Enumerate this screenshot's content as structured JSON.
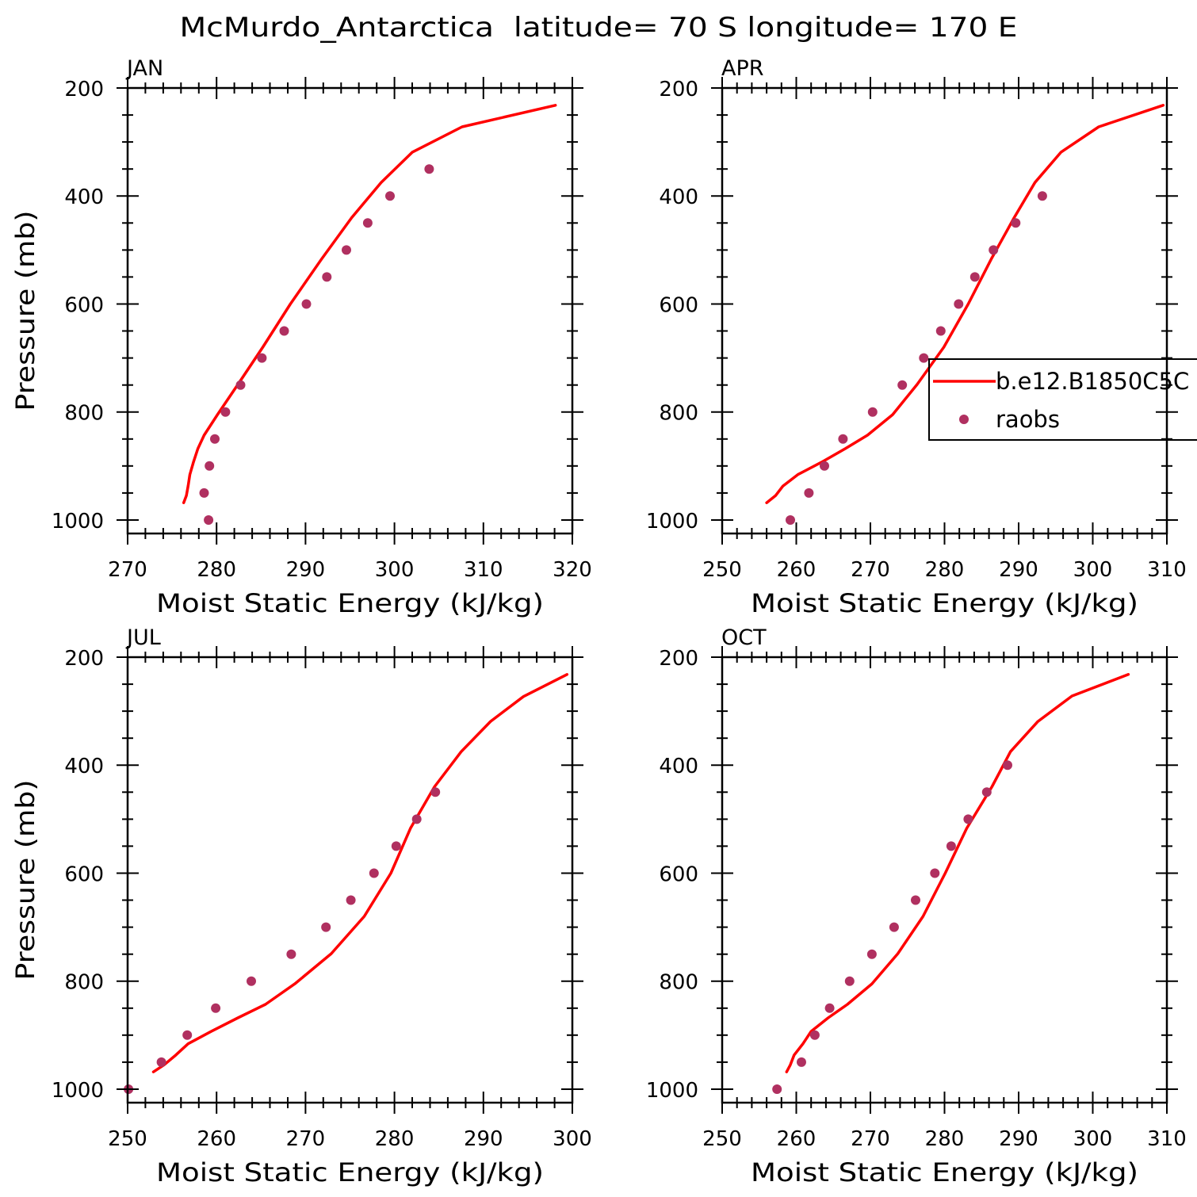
{
  "title": "McMurdo_Antarctica  latitude= 70 S longitude= 170 E",
  "colors": {
    "axes": "#000000",
    "background": "#ffffff"
  },
  "chart_data": [
    {
      "type": "line",
      "panel_label": "JAN",
      "xlabel": "Moist Static Energy (kJ/kg)",
      "ylabel": "Pressure (mb)",
      "xlim": [
        270,
        320
      ],
      "ylim": [
        200,
        1025
      ],
      "y_axis_reversed": true,
      "xticks": [
        270,
        280,
        290,
        300,
        310,
        320
      ],
      "yticks": [
        200,
        400,
        600,
        800,
        1000
      ],
      "x_minor_step": 2,
      "y_minor_step": 50,
      "grid": false,
      "series": [
        {
          "name": "b.e12.B1850C5C",
          "style": "line",
          "color": "#ff0000",
          "points": [
            [
              318.1,
              232
            ],
            [
              307.6,
              272
            ],
            [
              302.0,
              319
            ],
            [
              298.5,
              375
            ],
            [
              295.2,
              440
            ],
            [
              291.8,
              517
            ],
            [
              288.3,
              600
            ],
            [
              285.2,
              680
            ],
            [
              282.4,
              749
            ],
            [
              280.1,
              805
            ],
            [
              278.6,
              843
            ],
            [
              277.9,
              868
            ],
            [
              277.4,
              893
            ],
            [
              277.0,
              916
            ],
            [
              276.8,
              937
            ],
            [
              276.6,
              955
            ],
            [
              276.3,
              968
            ]
          ]
        },
        {
          "name": "raobs",
          "style": "markers",
          "color": "#b03060",
          "points": [
            [
              303.9,
              350
            ],
            [
              299.5,
              400
            ],
            [
              297.0,
              450
            ],
            [
              294.6,
              500
            ],
            [
              292.4,
              550
            ],
            [
              290.1,
              600
            ],
            [
              287.6,
              650
            ],
            [
              285.1,
              700
            ],
            [
              282.7,
              750
            ],
            [
              281.0,
              800
            ],
            [
              279.8,
              850
            ],
            [
              279.2,
              900
            ],
            [
              278.6,
              950
            ],
            [
              279.1,
              1000
            ]
          ]
        }
      ]
    },
    {
      "type": "line",
      "panel_label": "APR",
      "xlabel": "Moist Static Energy (kJ/kg)",
      "ylabel": "",
      "xlim": [
        250,
        310
      ],
      "ylim": [
        200,
        1025
      ],
      "y_axis_reversed": true,
      "xticks": [
        250,
        260,
        270,
        280,
        290,
        300,
        310
      ],
      "yticks": [
        200,
        400,
        600,
        800,
        1000
      ],
      "x_minor_step": 2,
      "y_minor_step": 50,
      "grid": false,
      "legend_placement": "center-right",
      "series": [
        {
          "name": "b.e12.B1850C5C",
          "style": "line",
          "color": "#ff0000",
          "points": [
            [
              309.5,
              232
            ],
            [
              300.8,
              272
            ],
            [
              295.7,
              319
            ],
            [
              292.2,
              375
            ],
            [
              289.4,
              440
            ],
            [
              286.3,
              517
            ],
            [
              283.2,
              600
            ],
            [
              279.9,
              680
            ],
            [
              276.3,
              749
            ],
            [
              273.0,
              805
            ],
            [
              269.6,
              843
            ],
            [
              266.6,
              868
            ],
            [
              263.4,
              893
            ],
            [
              260.2,
              916
            ],
            [
              258.2,
              937
            ],
            [
              257.2,
              955
            ],
            [
              256.0,
              968
            ]
          ]
        },
        {
          "name": "raobs",
          "style": "markers",
          "color": "#b03060",
          "points": [
            [
              293.2,
              400
            ],
            [
              289.6,
              450
            ],
            [
              286.6,
              500
            ],
            [
              284.1,
              550
            ],
            [
              281.9,
              600
            ],
            [
              279.5,
              650
            ],
            [
              277.2,
              700
            ],
            [
              274.3,
              750
            ],
            [
              270.3,
              800
            ],
            [
              266.3,
              850
            ],
            [
              263.8,
              900
            ],
            [
              261.7,
              950
            ],
            [
              259.2,
              1000
            ]
          ]
        }
      ]
    },
    {
      "type": "line",
      "panel_label": "JUL",
      "xlabel": "Moist Static Energy (kJ/kg)",
      "ylabel": "Pressure (mb)",
      "xlim": [
        250,
        300
      ],
      "ylim": [
        200,
        1025
      ],
      "y_axis_reversed": true,
      "xticks": [
        250,
        260,
        270,
        280,
        290,
        300
      ],
      "yticks": [
        200,
        400,
        600,
        800,
        1000
      ],
      "x_minor_step": 2,
      "y_minor_step": 50,
      "grid": false,
      "series": [
        {
          "name": "b.e12.B1850C5C",
          "style": "line",
          "color": "#ff0000",
          "points": [
            [
              299.4,
              232
            ],
            [
              294.5,
              273
            ],
            [
              290.8,
              319
            ],
            [
              287.5,
              375
            ],
            [
              284.5,
              440
            ],
            [
              281.8,
              517
            ],
            [
              279.6,
              600
            ],
            [
              276.6,
              680
            ],
            [
              272.9,
              749
            ],
            [
              268.8,
              805
            ],
            [
              265.5,
              843
            ],
            [
              262.4,
              868
            ],
            [
              259.4,
              893
            ],
            [
              256.8,
              916
            ],
            [
              255.4,
              937
            ],
            [
              254.1,
              955
            ],
            [
              252.9,
              968
            ]
          ]
        },
        {
          "name": "raobs",
          "style": "markers",
          "color": "#b03060",
          "points": [
            [
              284.6,
              450
            ],
            [
              282.5,
              500
            ],
            [
              280.2,
              550
            ],
            [
              277.7,
              600
            ],
            [
              275.1,
              650
            ],
            [
              272.3,
              700
            ],
            [
              268.4,
              750
            ],
            [
              263.9,
              800
            ],
            [
              259.9,
              850
            ],
            [
              256.7,
              900
            ],
            [
              253.8,
              950
            ],
            [
              250.1,
              1000
            ]
          ]
        }
      ]
    },
    {
      "type": "line",
      "panel_label": "OCT",
      "xlabel": "Moist Static Energy (kJ/kg)",
      "ylabel": "",
      "xlim": [
        250,
        310
      ],
      "ylim": [
        200,
        1025
      ],
      "y_axis_reversed": true,
      "xticks": [
        250,
        260,
        270,
        280,
        290,
        300,
        310
      ],
      "yticks": [
        200,
        400,
        600,
        800,
        1000
      ],
      "x_minor_step": 2,
      "y_minor_step": 50,
      "grid": false,
      "series": [
        {
          "name": "b.e12.B1850C5C",
          "style": "line",
          "color": "#ff0000",
          "points": [
            [
              304.8,
              232
            ],
            [
              297.2,
              272
            ],
            [
              292.6,
              319
            ],
            [
              288.9,
              375
            ],
            [
              286.4,
              440
            ],
            [
              283.0,
              517
            ],
            [
              280.1,
              600
            ],
            [
              277.1,
              680
            ],
            [
              273.7,
              749
            ],
            [
              270.2,
              805
            ],
            [
              266.9,
              843
            ],
            [
              264.3,
              868
            ],
            [
              262.0,
              893
            ],
            [
              260.9,
              916
            ],
            [
              259.7,
              937
            ],
            [
              259.2,
              955
            ],
            [
              258.7,
              968
            ]
          ]
        },
        {
          "name": "raobs",
          "style": "markers",
          "color": "#b03060",
          "points": [
            [
              288.5,
              400
            ],
            [
              285.7,
              450
            ],
            [
              283.2,
              500
            ],
            [
              280.9,
              550
            ],
            [
              278.7,
              600
            ],
            [
              276.1,
              650
            ],
            [
              273.2,
              700
            ],
            [
              270.2,
              750
            ],
            [
              267.2,
              800
            ],
            [
              264.5,
              850
            ],
            [
              262.5,
              900
            ],
            [
              260.7,
              950
            ],
            [
              257.4,
              1000
            ]
          ]
        }
      ]
    }
  ]
}
